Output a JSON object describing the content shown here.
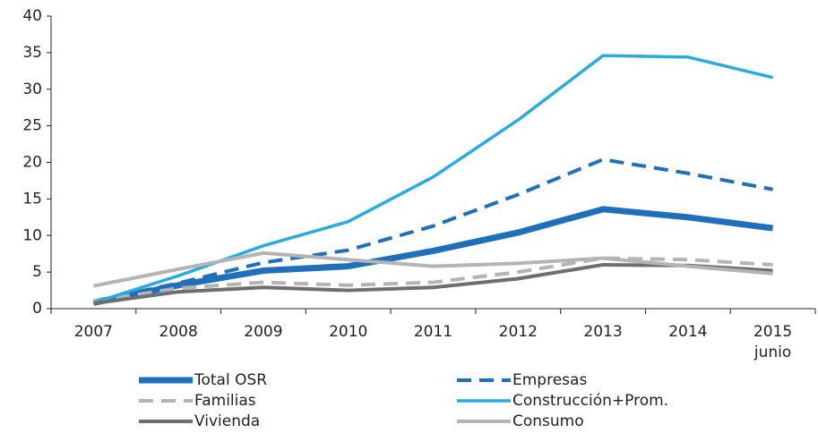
{
  "chart_data": {
    "type": "line",
    "categories": [
      "2007",
      "2008",
      "2009",
      "2010",
      "2011",
      "2012",
      "2013",
      "2014",
      "2015 junio"
    ],
    "series": [
      {
        "name": "Total OSR",
        "color": "#1f6fba",
        "linestyle": "solid",
        "values": [
          0.8,
          3.2,
          5.2,
          5.8,
          7.9,
          10.4,
          13.6,
          12.5,
          11.0
        ]
      },
      {
        "name": "Empresas",
        "color": "#1f6fba",
        "linestyle": "dashed",
        "values": [
          1.0,
          3.5,
          6.3,
          8.0,
          11.3,
          15.6,
          20.4,
          18.5,
          16.3
        ]
      },
      {
        "name": "Familias",
        "color": "#b4b4b4",
        "linestyle": "dashed",
        "values": [
          1.0,
          2.8,
          3.6,
          3.2,
          3.6,
          5.0,
          6.9,
          6.7,
          6.0
        ]
      },
      {
        "name": "Construcción+Prom.",
        "color": "#29abe2",
        "linestyle": "solid",
        "values": [
          0.8,
          4.5,
          8.6,
          11.9,
          18.0,
          25.8,
          34.6,
          34.4,
          31.6
        ]
      },
      {
        "name": "Vivienda",
        "color": "#6d6e71",
        "linestyle": "solid",
        "values": [
          0.7,
          2.3,
          2.9,
          2.5,
          2.9,
          4.1,
          6.0,
          5.9,
          5.2
        ]
      },
      {
        "name": "Consumo",
        "color": "#b4b4b4",
        "linestyle": "solid",
        "values": [
          3.1,
          5.4,
          7.6,
          6.7,
          5.8,
          6.2,
          6.9,
          5.8,
          4.8
        ]
      }
    ],
    "ylim": [
      0,
      40
    ],
    "yticks": [
      0,
      5,
      10,
      15,
      20,
      25,
      30,
      35,
      40
    ],
    "grid": false,
    "legend": "bottom"
  }
}
